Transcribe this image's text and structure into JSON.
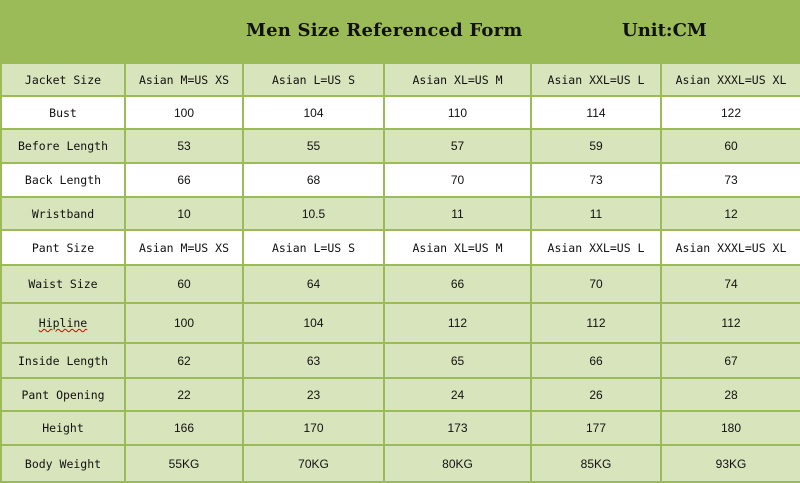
{
  "header": {
    "title": "Men Size Referenced Form",
    "unit": "Unit:CM"
  },
  "colors": {
    "header_bg": "#9bbb59",
    "row_green": "#d8e4bc",
    "row_white": "#ffffff",
    "border": "#9bbb59"
  },
  "rows": [
    {
      "shade": "green",
      "cells": [
        "Jacket Size",
        "Asian M=US XS",
        "Asian L=US S",
        "Asian XL=US M",
        "Asian XXL=US L",
        "Asian XXXL=US XL"
      ]
    },
    {
      "shade": "white",
      "cells": [
        "Bust",
        "100",
        "104",
        "110",
        "114",
        "122"
      ]
    },
    {
      "shade": "green",
      "cells": [
        "Before Length",
        "53",
        "55",
        "57",
        "59",
        "60"
      ]
    },
    {
      "shade": "white",
      "cells": [
        "Back Length",
        "66",
        "68",
        "70",
        "73",
        "73"
      ]
    },
    {
      "shade": "green",
      "cells": [
        "Wristband",
        "10",
        "10.5",
        "11",
        "11",
        "12"
      ]
    },
    {
      "shade": "white",
      "cells": [
        "Pant Size",
        "Asian M=US XS",
        "Asian L=US S",
        "Asian XL=US M",
        "Asian XXL=US L",
        "Asian XXXL=US XL"
      ]
    },
    {
      "shade": "green",
      "cells": [
        "Waist Size",
        "60",
        "64",
        "66",
        "70",
        "74"
      ]
    },
    {
      "shade": "green",
      "cells": [
        "Hipline",
        "100",
        "104",
        "112",
        "112",
        "112"
      ]
    },
    {
      "shade": "green",
      "cells": [
        "Inside Length",
        "62",
        "63",
        "65",
        "66",
        "67"
      ]
    },
    {
      "shade": "green",
      "cells": [
        "Pant Opening",
        "22",
        "23",
        "24",
        "26",
        "28"
      ]
    },
    {
      "shade": "green",
      "cells": [
        "Height",
        "166",
        "170",
        "173",
        "177",
        "180"
      ]
    },
    {
      "shade": "green",
      "cells": [
        "Body Weight",
        "55KG",
        "70KG",
        "80KG",
        "85KG",
        "93KG"
      ]
    }
  ]
}
